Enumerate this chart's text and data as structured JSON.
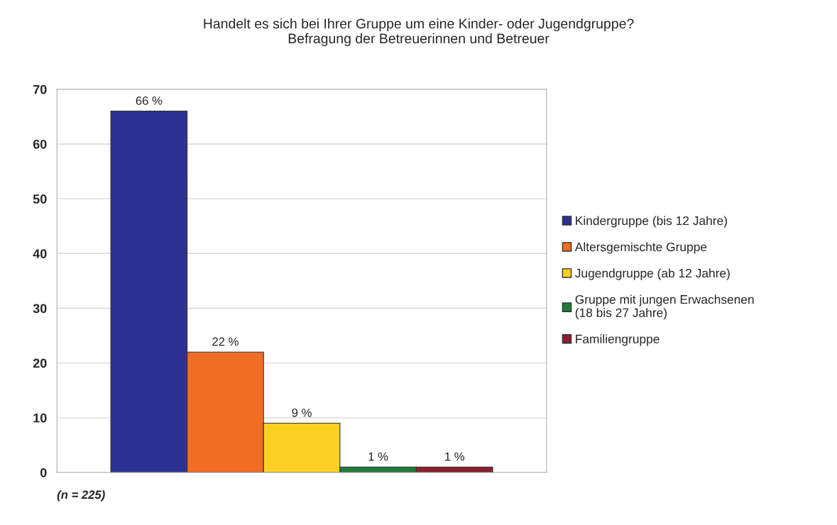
{
  "chart_data": {
    "type": "bar",
    "title": "Handelt es sich bei Ihrer Gruppe um eine Kinder- oder Jugendgruppe?\nBefragung der Betreuerinnen und Betreuer",
    "categories": [
      null
    ],
    "series": [
      {
        "name": "Kindergruppe (bis 12 Jahre)",
        "color": "#2e3192",
        "values": [
          66
        ],
        "value_labels": [
          "66 %"
        ]
      },
      {
        "name": "Altersgemischte Gruppe",
        "color": "#f26d24",
        "values": [
          22
        ],
        "value_labels": [
          "22 %"
        ]
      },
      {
        "name": "Jugendgruppe (ab 12 Jahre)",
        "color": "#fdd023",
        "values": [
          9
        ],
        "value_labels": [
          "9 %"
        ]
      },
      {
        "name": "Gruppe mit jungen Erwachsenen\n(18 bis 27 Jahre)",
        "color": "#1e7b3a",
        "values": [
          1
        ],
        "value_labels": [
          "1 %"
        ]
      },
      {
        "name": "Familiengruppe",
        "color": "#8b1e2e",
        "values": [
          1
        ],
        "value_labels": [
          "1 %"
        ]
      }
    ],
    "ylim": [
      0,
      70
    ],
    "yticks": [
      0,
      10,
      20,
      30,
      40,
      50,
      60,
      70
    ],
    "grid": "y",
    "legend": "right",
    "annotations": [
      "(n = 225)"
    ]
  }
}
